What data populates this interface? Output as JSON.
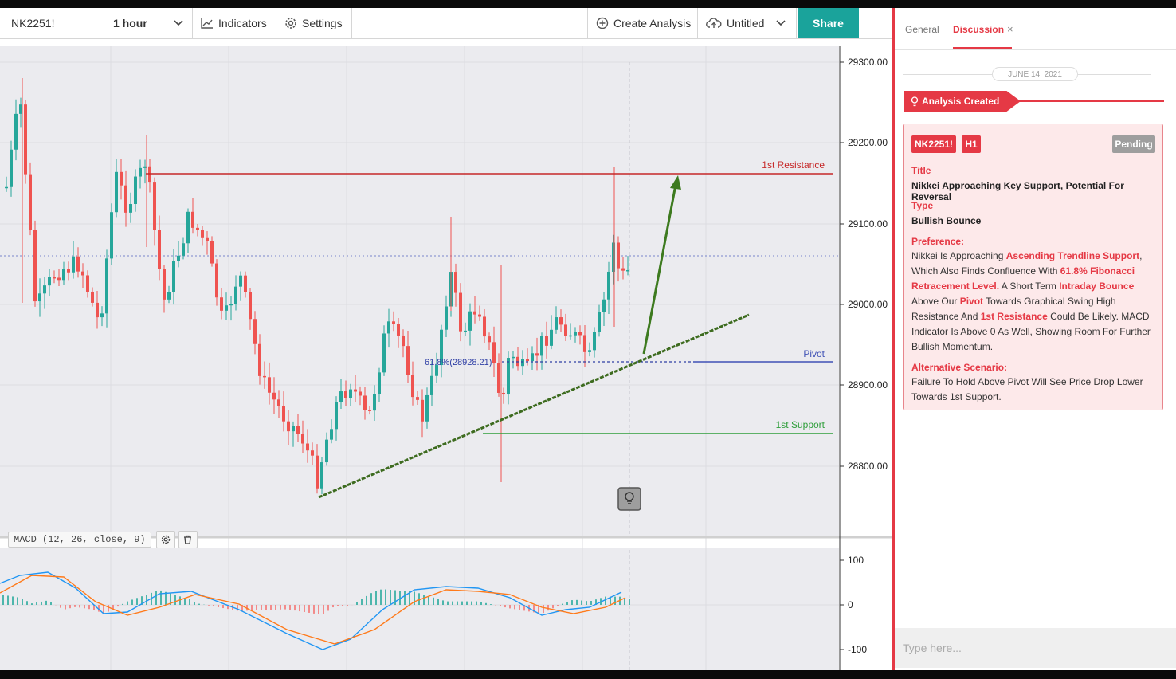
{
  "toolbar": {
    "symbol": "NK2251!",
    "interval": "1 hour",
    "indicators": "Indicators",
    "settings": "Settings",
    "create_analysis": "Create Analysis",
    "doc_name": "Untitled",
    "share": "Share"
  },
  "price_axis": [
    "29300.00",
    "29200.00",
    "29100.00",
    "29000.00",
    "28900.00",
    "28800.00"
  ],
  "macd_axis": [
    "100",
    "0",
    "-100"
  ],
  "chart_labels": {
    "resistance": "1st Resistance",
    "pivot": "Pivot",
    "support": "1st Support",
    "fib": "61.8%(28928.21)"
  },
  "macd": {
    "label": "MACD (12, 26, close, 9)"
  },
  "colors": {
    "up": "#26a69a",
    "down": "#ef5350",
    "resistance": "#c62828",
    "pivot": "#3f51b5",
    "support": "#2e9e3a",
    "trend": "#3d6b1f",
    "accent": "#e53945"
  },
  "panel": {
    "tab_general": "General",
    "tab_discussion": "Discussion",
    "tab_close": "×",
    "date": "JUNE 14, 2021",
    "created": "Analysis Created",
    "symbol_badge": "NK2251!",
    "tf_badge": "H1",
    "status": "Pending",
    "title_label": "Title",
    "title": "Nikkei Approaching Key Support, Potential For Reversal",
    "type_label": "Type",
    "type": "Bullish Bounce",
    "pref_label": "Preference:",
    "pref": {
      "t1": "Nikkei Is Approaching ",
      "h1": "Ascending Trendline Support",
      "t2": ", Which Also Finds Confluence With ",
      "h2": "61.8% Fibonacci Retracement Level.",
      "t3": " A Short Term ",
      "h3": "Intraday Bounce",
      "t4": " Above Our ",
      "h4": "Pivot",
      "t5": " Towards Graphical Swing High Resistance And ",
      "h5": "1st Resistance",
      "t6": " Could Be Likely. MACD Indicator Is Above 0 As Well, Showing Room For Further Bullish Momentum."
    },
    "alt_label": "Alternative Scenario:",
    "alt": "Failure To Hold Above Pivot Will See Price Drop Lower Towards 1st Support.",
    "input_placeholder": "Type here..."
  }
}
